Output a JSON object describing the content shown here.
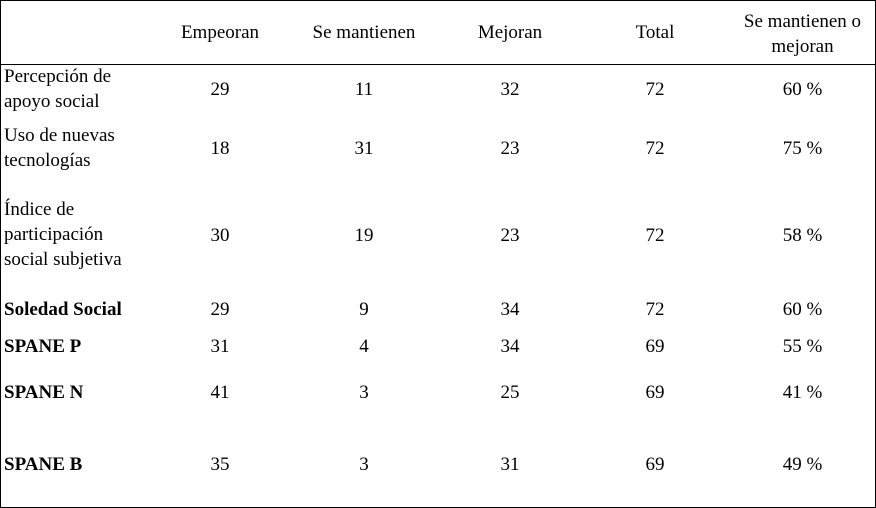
{
  "columns": [
    "Empeoran",
    "Se mantienen",
    "Mejoran",
    "Total",
    "Se mantienen o mejoran"
  ],
  "header": {
    "c0": "Empeoran",
    "c1": "Se mantienen",
    "c2": "Mejoran",
    "c3": "Total",
    "c4_line1": "Se mantienen o",
    "c4_line2": "mejoran"
  },
  "rows": [
    {
      "label_lines": [
        "Percepción de",
        "apoyo social"
      ],
      "bold": false,
      "values": [
        "29",
        "11",
        "32",
        "72",
        "60 %"
      ]
    },
    {
      "label_lines": [
        "Uso de nuevas",
        "tecnologías"
      ],
      "bold": false,
      "values": [
        "18",
        "31",
        "23",
        "72",
        "75 %"
      ]
    },
    {
      "label_lines": [
        "Índice de",
        "participación",
        "social subjetiva"
      ],
      "bold": false,
      "values": [
        "30",
        "19",
        "23",
        "72",
        "58 %"
      ]
    },
    {
      "label_lines": [
        "Soledad Social"
      ],
      "bold": true,
      "values": [
        "29",
        "9",
        "34",
        "72",
        "60 %"
      ]
    },
    {
      "label_lines": [
        "SPANE P"
      ],
      "bold": true,
      "values": [
        "31",
        "4",
        "34",
        "69",
        "55 %"
      ]
    },
    {
      "label_lines": [
        "SPANE N"
      ],
      "bold": true,
      "values": [
        "41",
        "3",
        "25",
        "69",
        "41 %"
      ]
    },
    {
      "label_lines": [
        "SPANE B"
      ],
      "bold": true,
      "values": [
        "35",
        "3",
        "31",
        "69",
        "49 %"
      ]
    }
  ]
}
